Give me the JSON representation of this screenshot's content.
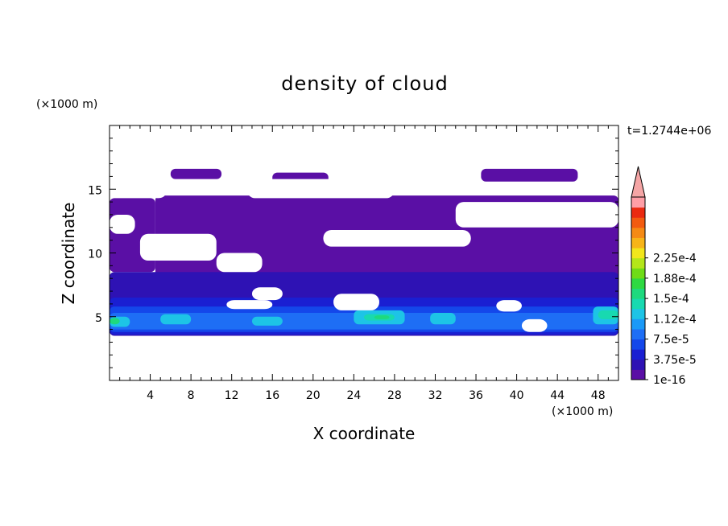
{
  "chart_data": {
    "type": "heatmap",
    "title": "density of cloud",
    "xlabel": "X coordinate",
    "ylabel": "Z coordinate",
    "x_unit": "(×1000 m)",
    "y_unit": "(×1000 m)",
    "time_label": "t=1.2744e+06",
    "xlim": [
      0,
      50
    ],
    "ylim": [
      0,
      20
    ],
    "x_ticks": [
      "4",
      "8",
      "12",
      "16",
      "20",
      "24",
      "28",
      "32",
      "36",
      "40",
      "44",
      "48"
    ],
    "y_ticks": [
      "5",
      "10",
      "15"
    ],
    "colorbar": {
      "labels": [
        "1e-16",
        "3.75e-5",
        "7.5e-5",
        "1.12e-4",
        "1.5e-4",
        "1.88e-4",
        "2.25e-4"
      ],
      "colors": [
        "#5a0fa5",
        "#2e12b4",
        "#1a1fd2",
        "#1447ea",
        "#1e6ef5",
        "#1a99f7",
        "#1dc4e6",
        "#18d9b0",
        "#1ed97e",
        "#2ed942",
        "#6fdc17",
        "#b4e61a",
        "#f2e61c",
        "#f7b418",
        "#f58a14",
        "#f25b10",
        "#ea2a10",
        "#ff9ea6"
      ],
      "extend": "max",
      "extension_color": "#f5a5a5"
    },
    "regions": [
      {
        "level": 0,
        "x": [
          4.5,
          50
        ],
        "z": [
          5.5,
          14.5
        ]
      },
      {
        "level": 0,
        "x": [
          0,
          4.5
        ],
        "z": [
          8.5,
          14.3
        ]
      },
      {
        "level": 0,
        "x": [
          6,
          11
        ],
        "z": [
          15.8,
          16.6
        ]
      },
      {
        "level": 0,
        "x": [
          16,
          21.5
        ],
        "z": [
          15.3,
          16.3
        ]
      },
      {
        "level": 0,
        "x": [
          36.5,
          46
        ],
        "z": [
          15.6,
          16.6
        ]
      },
      {
        "level": 1,
        "x": [
          0,
          50
        ],
        "z": [
          3.5,
          8.5
        ]
      },
      {
        "level": 2,
        "x": [
          0,
          50
        ],
        "z": [
          3.6,
          6.5
        ]
      },
      {
        "level": 3,
        "x": [
          0,
          50
        ],
        "z": [
          3.8,
          5.8
        ]
      },
      {
        "level": 4,
        "x": [
          0,
          50
        ],
        "z": [
          4.0,
          5.3
        ]
      },
      {
        "level": 6,
        "x": [
          0,
          2
        ],
        "z": [
          4.2,
          5.0
        ]
      },
      {
        "level": 6,
        "x": [
          5,
          8
        ],
        "z": [
          4.4,
          5.2
        ]
      },
      {
        "level": 6,
        "x": [
          14,
          17
        ],
        "z": [
          4.3,
          5.0
        ]
      },
      {
        "level": 6,
        "x": [
          24,
          29
        ],
        "z": [
          4.4,
          5.5
        ]
      },
      {
        "level": 6,
        "x": [
          31.5,
          34
        ],
        "z": [
          4.4,
          5.3
        ]
      },
      {
        "level": 6,
        "x": [
          47.5,
          50
        ],
        "z": [
          4.4,
          5.8
        ]
      },
      {
        "level": 7,
        "x": [
          25,
          28
        ],
        "z": [
          4.7,
          5.2
        ]
      },
      {
        "level": 7,
        "x": [
          48,
          50
        ],
        "z": [
          4.8,
          5.5
        ]
      },
      {
        "level": 8,
        "x": [
          0,
          1
        ],
        "z": [
          4.4,
          4.9
        ]
      },
      {
        "level": 8,
        "x": [
          26,
          27.5
        ],
        "z": [
          4.8,
          5.1
        ]
      }
    ],
    "gaps": [
      {
        "x": [
          3,
          10.5
        ],
        "z": [
          9.4,
          11.5
        ]
      },
      {
        "x": [
          10.5,
          15
        ],
        "z": [
          8.5,
          10.0
        ]
      },
      {
        "x": [
          21,
          35.5
        ],
        "z": [
          10.5,
          11.8
        ]
      },
      {
        "x": [
          34,
          50
        ],
        "z": [
          12.0,
          14.0
        ]
      },
      {
        "x": [
          13.5,
          28
        ],
        "z": [
          14.3,
          15.8
        ]
      },
      {
        "x": [
          0,
          2.5
        ],
        "z": [
          11.5,
          13.0
        ]
      },
      {
        "x": [
          11.5,
          16
        ],
        "z": [
          5.6,
          6.3
        ]
      },
      {
        "x": [
          14,
          17
        ],
        "z": [
          6.3,
          7.3
        ]
      },
      {
        "x": [
          22,
          26.5
        ],
        "z": [
          5.5,
          6.8
        ]
      },
      {
        "x": [
          38,
          40.5
        ],
        "z": [
          5.4,
          6.3
        ]
      },
      {
        "x": [
          40.5,
          43
        ],
        "z": [
          3.8,
          4.8
        ]
      },
      {
        "x": [
          4,
          5.5
        ],
        "z": [
          14.3,
          15.0
        ]
      }
    ]
  }
}
